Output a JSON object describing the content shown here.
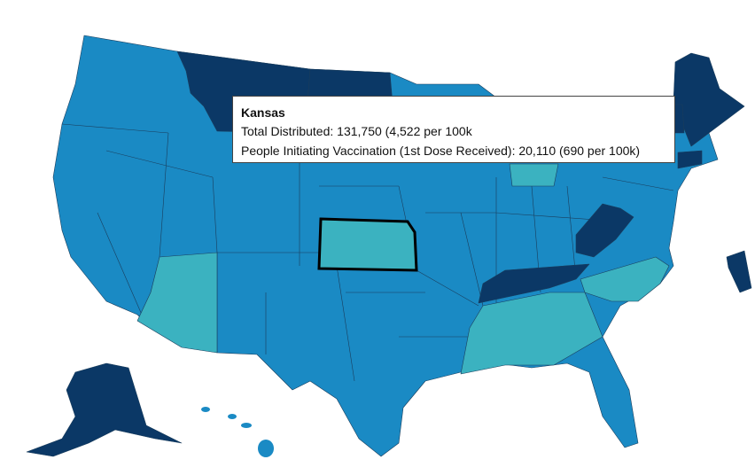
{
  "tooltip": {
    "title": "Kansas",
    "lines": [
      "Total Distributed: 131,750 (4,522 per 100k",
      "People Initiating Vaccination (1st Dose Received): 20,110 (690 per 100k)"
    ]
  }
}
